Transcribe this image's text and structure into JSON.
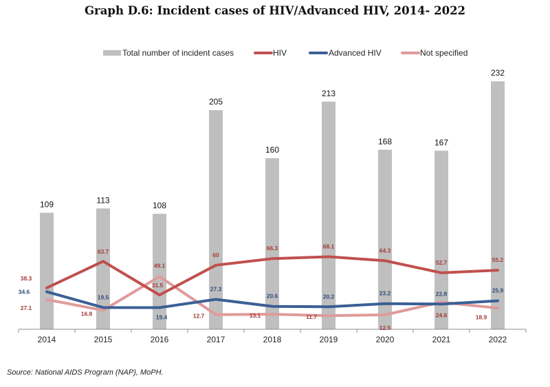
{
  "title": "Graph D.6: Incident cases of HIV/Advanced HIV, 2014- 2022",
  "source": "Source: National AIDS Program (NAP), MoPH.",
  "chart_data": {
    "type": "bar+line",
    "title": "Graph D.6: Incident cases of HIV/Advanced HIV, 2014- 2022",
    "xlabel": "",
    "ylabel": "",
    "categories": [
      "2014",
      "2015",
      "2016",
      "2017",
      "2018",
      "2019",
      "2020",
      "2021",
      "2022"
    ],
    "legend_position": "top",
    "grid": false,
    "series": [
      {
        "name": "Total number of incident cases",
        "type": "bar",
        "color": "#bfbfbf",
        "label_color": "#111111",
        "values": [
          109,
          113,
          108,
          205,
          160,
          213,
          168,
          167,
          232
        ]
      },
      {
        "name": "HIV",
        "type": "line",
        "color": "#c0504d",
        "label_color": "#a33b38",
        "values": [
          38.3,
          63.7,
          31.5,
          60,
          66.3,
          68.1,
          64.3,
          52.7,
          55.2
        ]
      },
      {
        "name": "Advanced HIV",
        "type": "line",
        "color": "#3a5f95",
        "label_color": "#2f4d78",
        "values": [
          34.6,
          19.5,
          19.4,
          27.3,
          20.6,
          20.2,
          23.2,
          22.8,
          25.9
        ]
      },
      {
        "name": "Not specified",
        "type": "line",
        "color": "#e09a9a",
        "label_color": "#a33b38",
        "values": [
          27.1,
          16.8,
          49.1,
          12.7,
          13.1,
          11.7,
          12.5,
          24.6,
          18.9
        ]
      }
    ]
  }
}
